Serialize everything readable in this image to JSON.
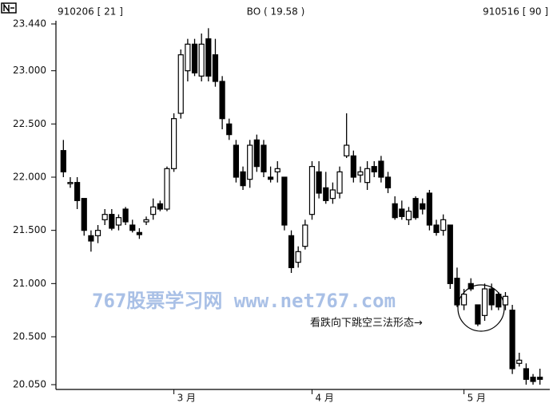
{
  "chart_data": {
    "type": "candlestick",
    "header_left": "910206 [ 21 ]",
    "header_center": "BO ( 19.58 )",
    "header_right": "910516 [ 90 ]",
    "watermark": "767股票学习网 www.net767.com",
    "annotation": "看跌向下跳空三法形态→",
    "up_color": "#ffffff",
    "down_color": "#000000",
    "categories": [
      null,
      null,
      null,
      null,
      null,
      null,
      null,
      null,
      null,
      null,
      null,
      null,
      null,
      null,
      null,
      null,
      "3 月",
      null,
      null,
      null,
      null,
      null,
      null,
      null,
      null,
      null,
      null,
      null,
      null,
      null,
      null,
      null,
      null,
      null,
      null,
      null,
      "4 月",
      null,
      null,
      null,
      null,
      null,
      null,
      null,
      null,
      null,
      null,
      null,
      null,
      null,
      null,
      null,
      null,
      null,
      null,
      null,
      null,
      null,
      "5 月",
      null,
      null,
      null,
      null,
      null,
      null,
      null,
      null,
      null,
      null,
      null
    ],
    "open": [
      22.25,
      21.95,
      21.95,
      21.8,
      21.45,
      21.45,
      21.6,
      21.65,
      21.55,
      21.7,
      21.55,
      21.48,
      21.58,
      21.65,
      21.75,
      21.7,
      22.08,
      22.6,
      23.0,
      23.25,
      22.95,
      23.3,
      23.15,
      22.9,
      22.5,
      22.3,
      22.05,
      21.98,
      22.35,
      22.3,
      22.0,
      22.05,
      22.0,
      21.45,
      21.2,
      21.35,
      21.65,
      22.05,
      21.9,
      21.8,
      21.85,
      22.2,
      22.2,
      22.02,
      21.95,
      22.1,
      22.15,
      22.0,
      21.75,
      21.7,
      21.6,
      21.8,
      21.75,
      21.85,
      21.55,
      21.5,
      21.55,
      21.05,
      20.8,
      21.0,
      20.8,
      20.7,
      20.95,
      20.9,
      20.8,
      20.75,
      20.25,
      20.2,
      20.12,
      20.12
    ],
    "high": [
      22.35,
      22.0,
      22.0,
      21.8,
      21.5,
      21.55,
      21.7,
      21.7,
      21.65,
      21.72,
      21.6,
      21.52,
      21.63,
      21.8,
      21.78,
      22.1,
      22.6,
      23.2,
      23.3,
      23.3,
      23.35,
      23.4,
      23.3,
      22.95,
      22.55,
      22.35,
      22.1,
      22.35,
      22.4,
      22.35,
      22.1,
      22.15,
      22.0,
      21.5,
      21.35,
      21.6,
      22.15,
      22.15,
      22.05,
      21.95,
      22.1,
      22.6,
      22.25,
      22.1,
      22.15,
      22.15,
      22.2,
      22.05,
      21.82,
      21.78,
      21.72,
      21.82,
      21.8,
      21.88,
      21.6,
      21.65,
      21.55,
      21.15,
      20.95,
      21.05,
      20.8,
      21.0,
      21.0,
      20.92,
      20.92,
      20.8,
      20.35,
      20.25,
      20.15,
      20.2
    ],
    "low": [
      22.0,
      21.9,
      21.7,
      21.45,
      21.3,
      21.38,
      21.55,
      21.5,
      21.5,
      21.55,
      21.48,
      21.42,
      21.55,
      21.6,
      21.68,
      21.68,
      22.05,
      22.55,
      22.9,
      22.95,
      22.9,
      22.9,
      22.85,
      22.45,
      22.35,
      21.95,
      21.88,
      21.9,
      22.05,
      22.0,
      21.95,
      21.95,
      21.5,
      21.1,
      21.15,
      21.32,
      21.6,
      21.8,
      21.75,
      21.75,
      21.8,
      22.18,
      21.95,
      21.95,
      21.88,
      22.0,
      21.95,
      21.85,
      21.6,
      21.6,
      21.55,
      21.6,
      21.65,
      21.5,
      21.45,
      21.45,
      20.95,
      20.78,
      20.75,
      20.93,
      20.6,
      20.65,
      20.75,
      20.75,
      20.75,
      20.15,
      20.22,
      20.05,
      20.05,
      20.05
    ],
    "close": [
      22.05,
      21.95,
      21.78,
      21.5,
      21.4,
      21.5,
      21.65,
      21.52,
      21.62,
      21.58,
      21.5,
      21.46,
      21.6,
      21.72,
      21.7,
      22.08,
      22.55,
      23.15,
      23.25,
      22.98,
      23.25,
      22.95,
      22.9,
      22.55,
      22.4,
      22.0,
      21.92,
      22.3,
      22.1,
      22.05,
      21.98,
      22.08,
      21.55,
      21.15,
      21.3,
      21.55,
      22.1,
      21.85,
      21.78,
      21.88,
      22.05,
      22.3,
      22.0,
      22.05,
      22.08,
      22.05,
      22.0,
      21.9,
      21.62,
      21.63,
      21.68,
      21.62,
      21.7,
      21.55,
      21.48,
      21.6,
      21.0,
      20.8,
      20.9,
      20.95,
      20.62,
      20.95,
      20.8,
      20.78,
      20.88,
      20.2,
      20.28,
      20.1,
      20.08,
      20.1
    ],
    "ylim": [
      20.05,
      23.44
    ],
    "yticks": [
      {
        "value": 23.44,
        "label": "23.440"
      },
      {
        "value": 23.0,
        "label": "23.000"
      },
      {
        "value": 22.5,
        "label": "22.500"
      },
      {
        "value": 22.0,
        "label": "22.000"
      },
      {
        "value": 21.5,
        "label": "21.500"
      },
      {
        "value": 21.0,
        "label": "21.000"
      },
      {
        "value": 20.5,
        "label": "20.500"
      },
      {
        "value": 20.05,
        "label": "20.050"
      }
    ]
  }
}
